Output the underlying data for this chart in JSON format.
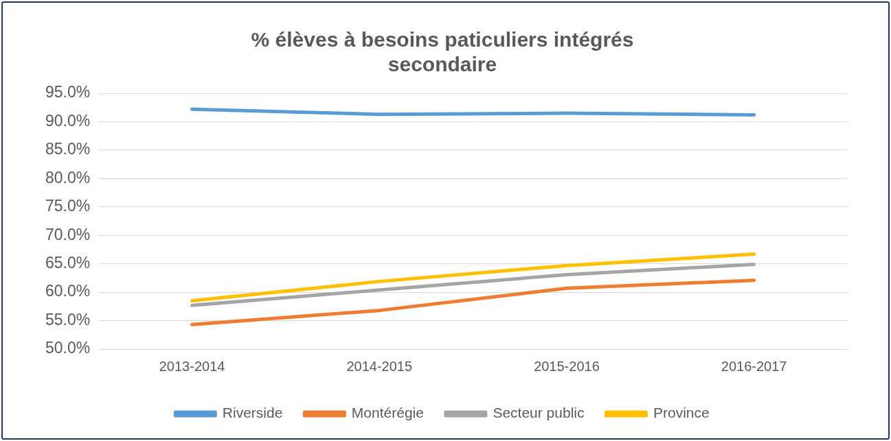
{
  "chart_data": {
    "type": "line",
    "title": "% élèves à besoins paticuliers intégrés\nsecondaire",
    "categories": [
      "2013-2014",
      "2014-2015",
      "2015-2016",
      "2016-2017"
    ],
    "series": [
      {
        "name": "Riverside",
        "color": "#5b9bd5",
        "values": [
          92.2,
          91.3,
          91.5,
          91.2
        ]
      },
      {
        "name": "Montérégie",
        "color": "#ed7d31",
        "values": [
          54.3,
          56.8,
          60.7,
          62.1
        ]
      },
      {
        "name": "Secteur public",
        "color": "#a5a5a5",
        "values": [
          57.7,
          60.4,
          63.1,
          64.9
        ]
      },
      {
        "name": "Province",
        "color": "#ffc000",
        "values": [
          58.5,
          61.9,
          64.7,
          66.7
        ]
      }
    ],
    "ylim": [
      50,
      95
    ],
    "yticks": [
      {
        "value": 50,
        "label": "50.0%"
      },
      {
        "value": 55,
        "label": "55.0%"
      },
      {
        "value": 60,
        "label": "60.0%"
      },
      {
        "value": 65,
        "label": "65.0%"
      },
      {
        "value": 70,
        "label": "70.0%"
      },
      {
        "value": 75,
        "label": "75.0%"
      },
      {
        "value": 80,
        "label": "80.0%"
      },
      {
        "value": 85,
        "label": "85.0%"
      },
      {
        "value": 90,
        "label": "90.0%"
      },
      {
        "value": 95,
        "label": "95.0%"
      }
    ],
    "grid": "y",
    "legend": "bottom",
    "marker": "none",
    "line_style": "solid"
  }
}
